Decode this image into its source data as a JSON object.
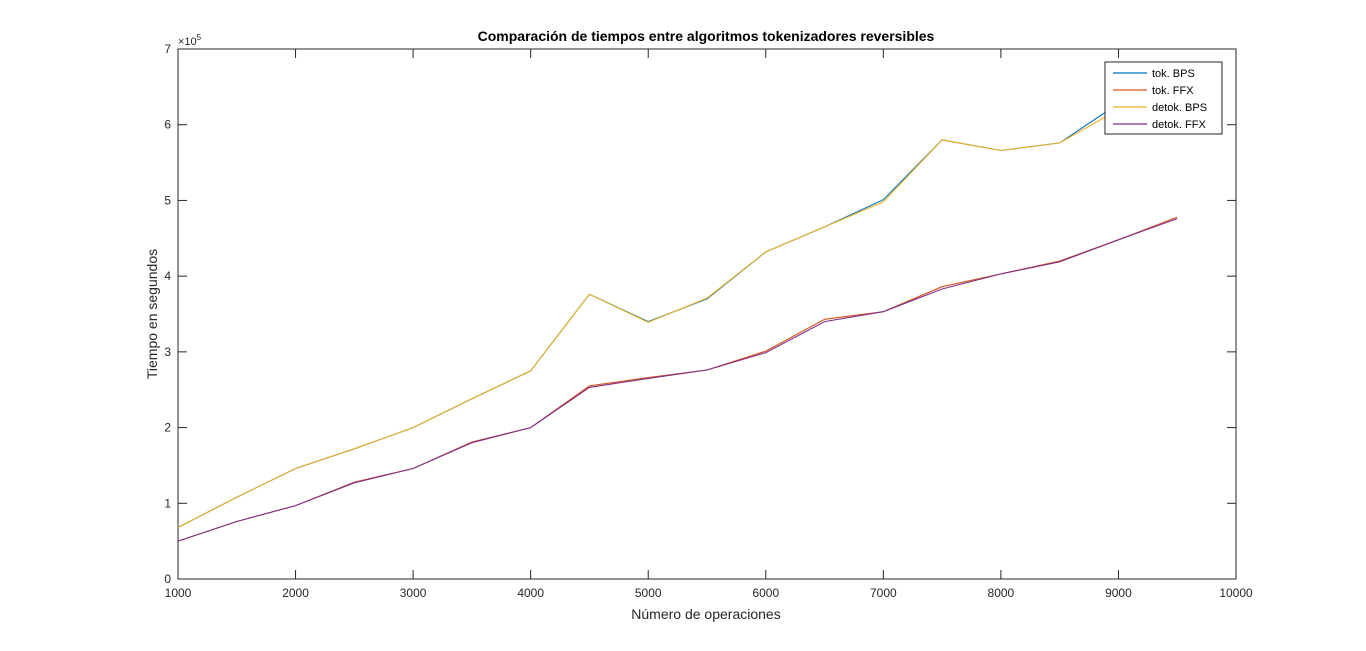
{
  "chart_data": {
    "type": "line",
    "title": "Comparación de tiempos entre algoritmos tokenizadores reversibles",
    "xlabel": "Número de operaciones",
    "ylabel": "Tiempo en segundos",
    "y_exponent_label": "×10",
    "y_exponent_power": "5",
    "xlim": [
      1000,
      10000
    ],
    "ylim": [
      0,
      700000
    ],
    "xticks": [
      1000,
      2000,
      3000,
      4000,
      5000,
      6000,
      7000,
      8000,
      9000,
      10000
    ],
    "yticks": [
      0,
      100000,
      200000,
      300000,
      400000,
      500000,
      600000,
      700000
    ],
    "xtick_labels": [
      "1000",
      "2000",
      "3000",
      "4000",
      "5000",
      "6000",
      "7000",
      "8000",
      "9000",
      "10000"
    ],
    "ytick_labels": [
      "0",
      "1",
      "2",
      "3",
      "4",
      "5",
      "6",
      "7"
    ],
    "grid": false,
    "legend_position": "top-right",
    "x": [
      1000,
      1500,
      2000,
      2500,
      3000,
      3500,
      4000,
      4500,
      5000,
      5500,
      6000,
      6500,
      7000,
      7500,
      8000,
      8500,
      9000,
      9500
    ],
    "series": [
      {
        "name": "tok. BPS",
        "color": "#0072BD",
        "values": [
          68000,
          108000,
          146000,
          172000,
          200000,
          238000,
          275000,
          376000,
          340000,
          370000,
          432000,
          465000,
          501000,
          580000,
          566000,
          576000,
          628000,
          650000
        ]
      },
      {
        "name": "tok. FFX",
        "color": "#D95319",
        "values": [
          50000,
          76000,
          97000,
          128000,
          146000,
          181000,
          200000,
          255000,
          266000,
          276000,
          301000,
          343000,
          353000,
          386000,
          403000,
          420000,
          448000,
          478000
        ]
      },
      {
        "name": "detok. BPS",
        "color": "#EDB120",
        "values": [
          68000,
          108000,
          146000,
          172000,
          200000,
          238000,
          275000,
          376000,
          339000,
          371000,
          432000,
          465000,
          498000,
          580000,
          566000,
          576000,
          620000,
          650000
        ]
      },
      {
        "name": "detok. FFX",
        "color": "#7E2F8E",
        "values": [
          50000,
          76000,
          97000,
          127000,
          146000,
          180000,
          200000,
          253000,
          265000,
          276000,
          299000,
          340000,
          353000,
          383000,
          403000,
          419000,
          448000,
          476000
        ]
      }
    ]
  }
}
